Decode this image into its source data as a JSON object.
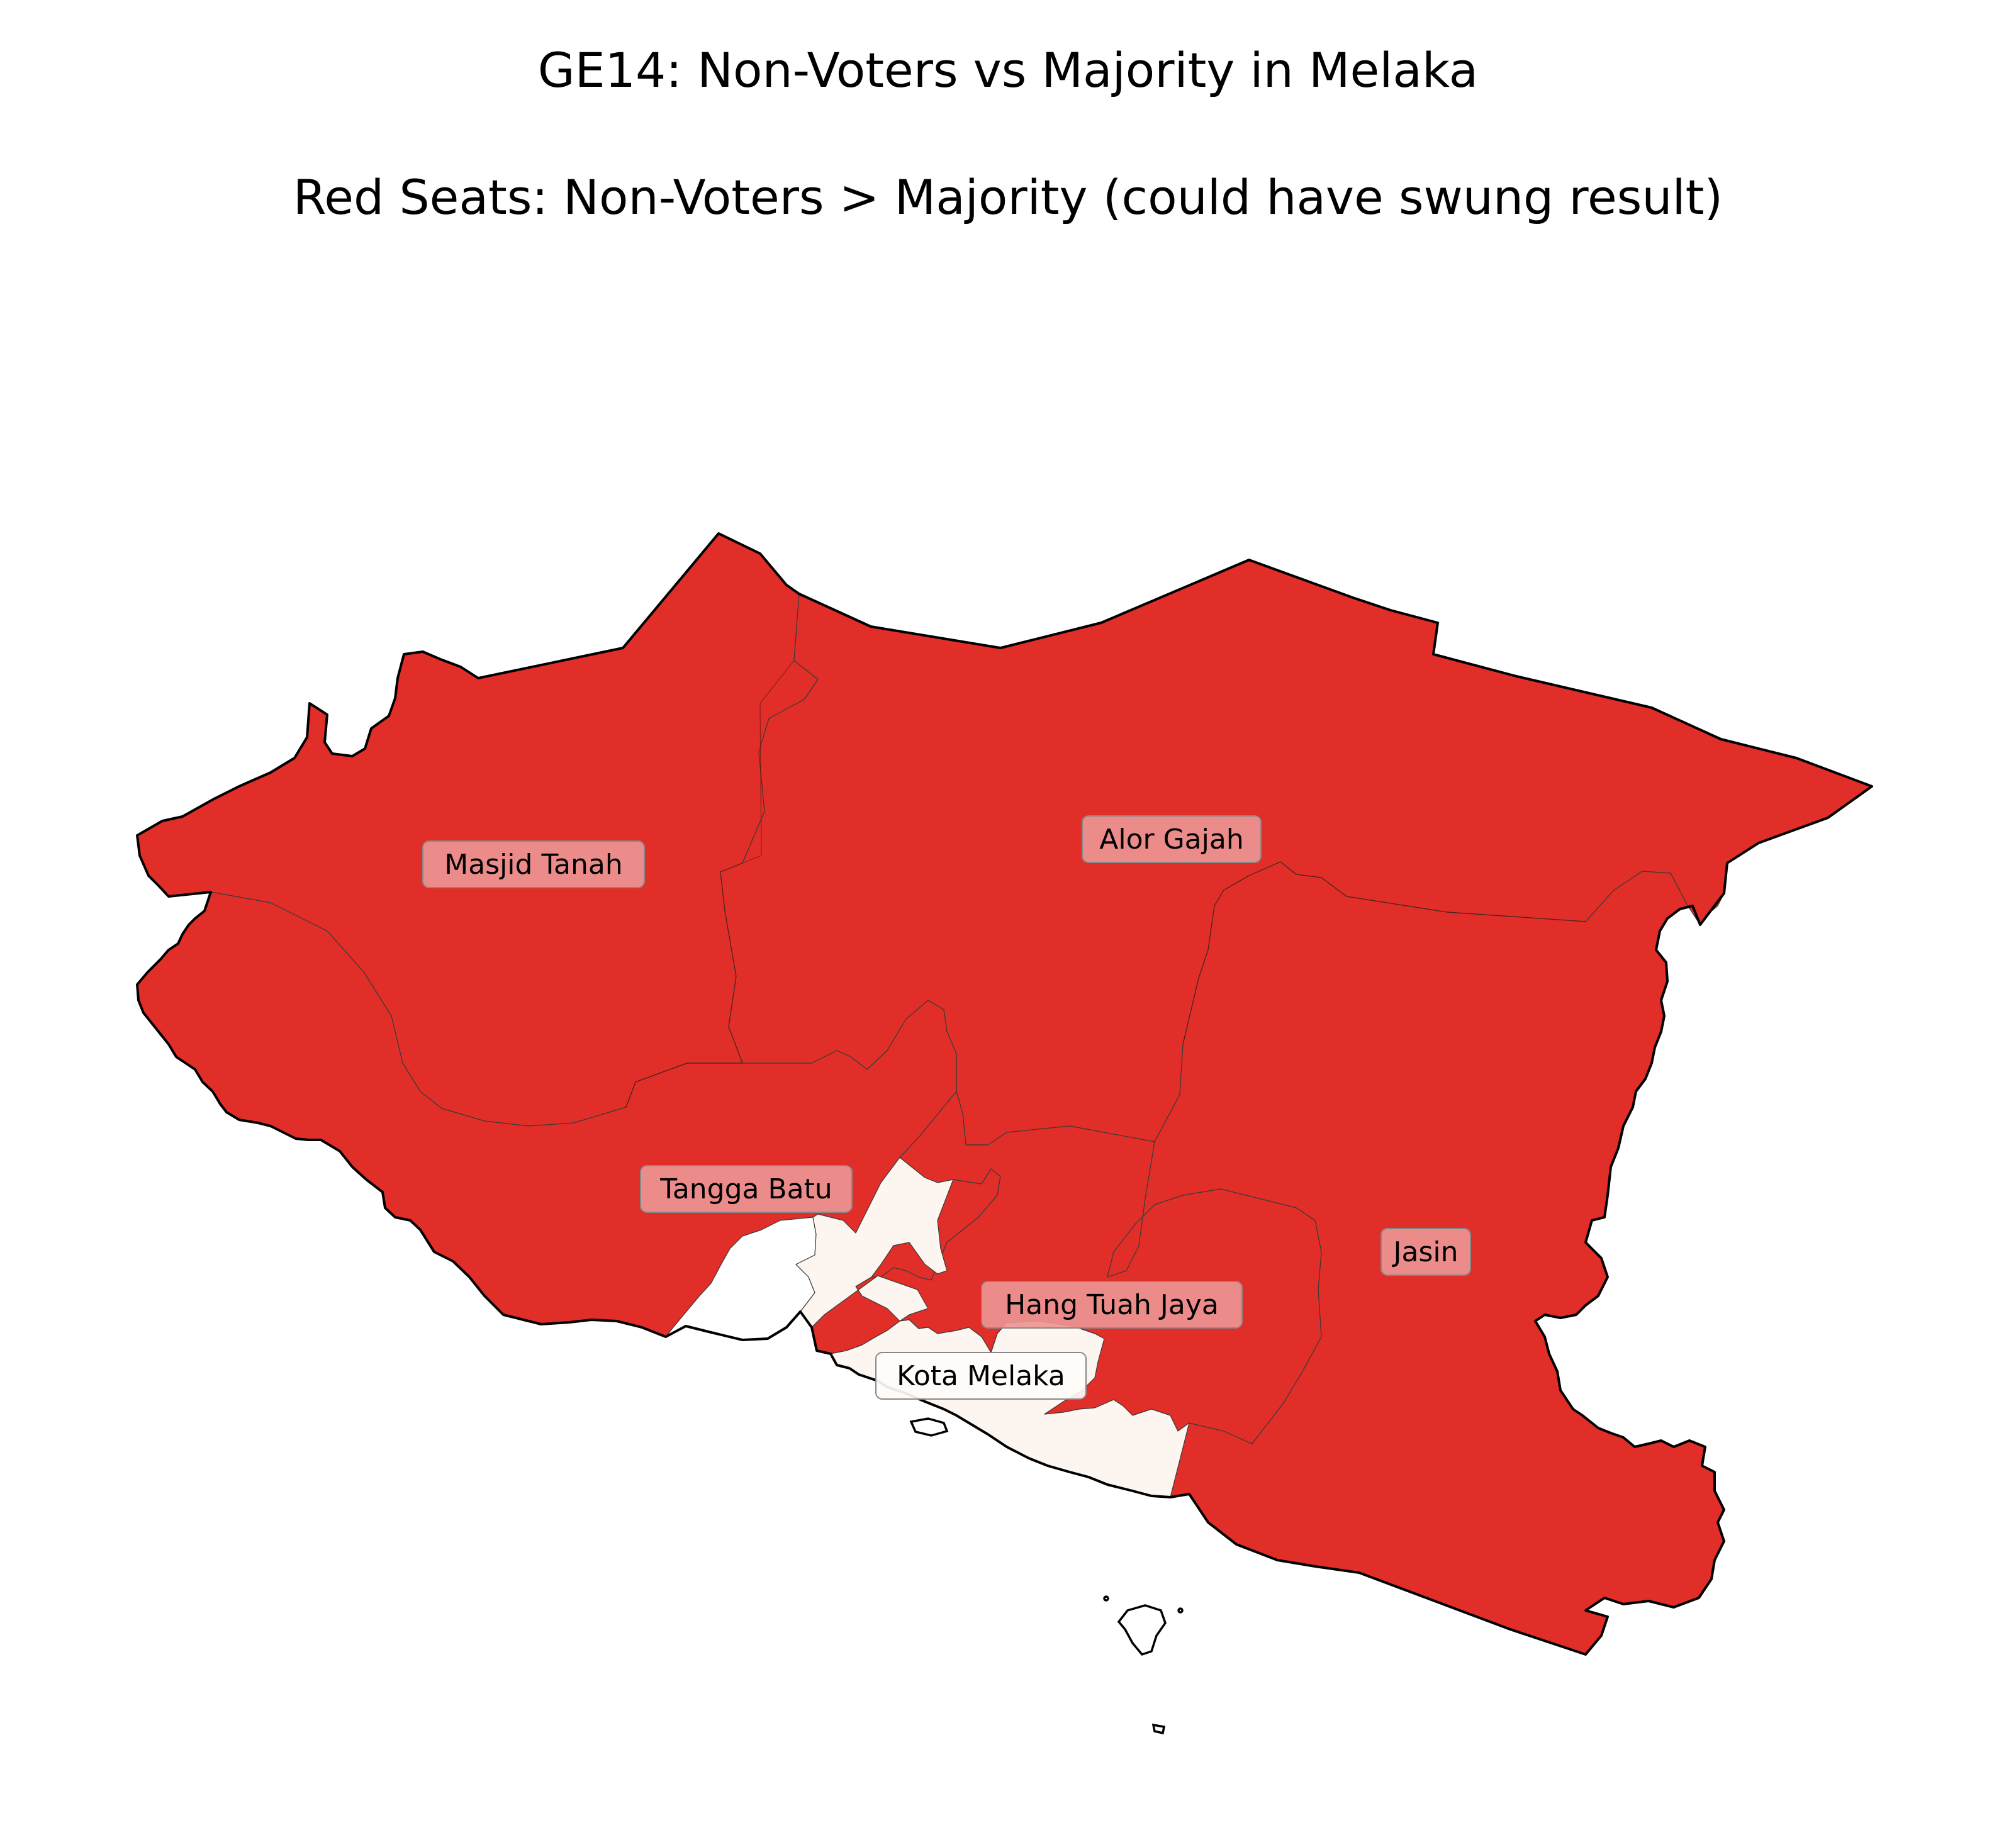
{
  "title": "GE14: Non-Voters vs Majority in Melaka",
  "subtitle": "Red Seats: Non-Voters > Majority (could have swung result)",
  "colors": {
    "swing_seat": "#e12e28",
    "safe_seat": "#fdf5f0",
    "swing_label_bg": "#ec9593",
    "safe_label_bg": "#fefbf9",
    "outline": "#000000"
  },
  "seats": [
    {
      "id": "masjid-tanah",
      "name": "Masjid Tanah",
      "non_voters_exceed_majority": true
    },
    {
      "id": "alor-gajah",
      "name": "Alor Gajah",
      "non_voters_exceed_majority": true
    },
    {
      "id": "tangga-batu",
      "name": "Tangga Batu",
      "non_voters_exceed_majority": true
    },
    {
      "id": "jasin",
      "name": "Jasin",
      "non_voters_exceed_majority": true
    },
    {
      "id": "hang-tuah-jaya",
      "name": "Hang Tuah Jaya",
      "non_voters_exceed_majority": true
    },
    {
      "id": "kota-melaka",
      "name": "Kota Melaka",
      "non_voters_exceed_majority": false
    }
  ]
}
